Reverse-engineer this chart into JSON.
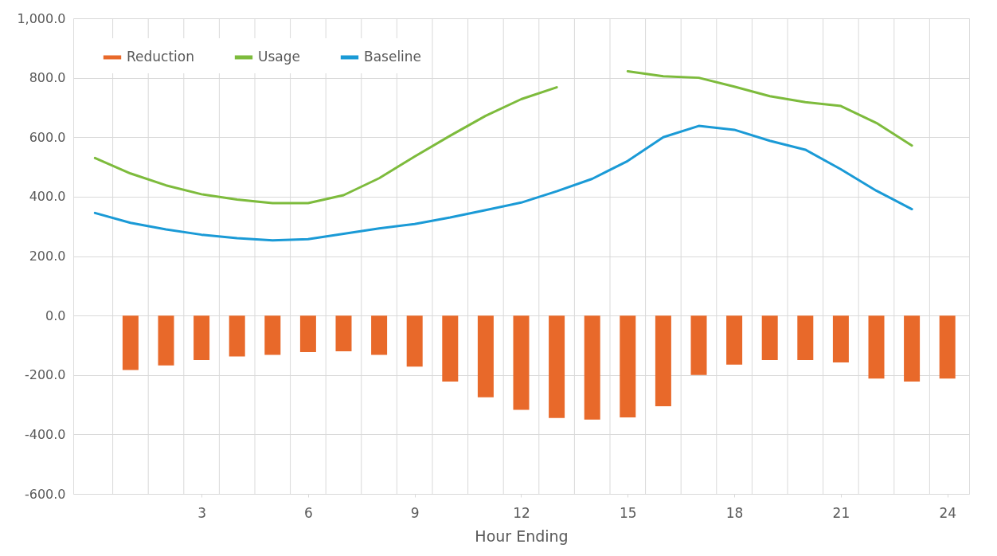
{
  "chart_data": {
    "type": "bar",
    "xlabel": "Hour Ending",
    "xlim": [
      -0.5,
      24.5
    ],
    "xticks": [
      {
        "value": 0.5,
        "label": null
      },
      {
        "value": 1.5,
        "label": null
      },
      {
        "value": 2.5,
        "label": null
      },
      3,
      {
        "value": 3.5,
        "label": null
      },
      {
        "value": 4.5,
        "label": null
      },
      {
        "value": 5.5,
        "label": null
      },
      6,
      {
        "value": 6.5,
        "label": null
      },
      {
        "value": 7.5,
        "label": null
      },
      {
        "value": 8.5,
        "label": null
      },
      9,
      {
        "value": 9.5,
        "label": null
      },
      {
        "value": 10.5,
        "label": null
      },
      {
        "value": 11.5,
        "label": null
      },
      12,
      {
        "value": 12.5,
        "label": null
      },
      {
        "value": 13.5,
        "label": null
      },
      {
        "value": 14.5,
        "label": null
      },
      15,
      {
        "value": 15.5,
        "label": null
      },
      {
        "value": 16.5,
        "label": null
      },
      {
        "value": 17.5,
        "label": null
      },
      18,
      {
        "value": 18.5,
        "label": null
      },
      {
        "value": 19.5,
        "label": null
      },
      {
        "value": 20.5,
        "label": null
      },
      21,
      {
        "value": 21.5,
        "label": null
      },
      {
        "value": 22.5,
        "label": null
      },
      {
        "value": 23.5,
        "label": null
      },
      24
    ],
    "ylim": [
      -600,
      1000
    ],
    "yticks": [
      {
        "value": -600,
        "label": "-600.0"
      },
      {
        "value": -400,
        "label": "-400.0"
      },
      {
        "value": -200,
        "label": "-200.0"
      },
      {
        "value": 0,
        "label": "0.0"
      },
      {
        "value": 200,
        "label": "200.0"
      },
      {
        "value": 400,
        "label": "400.0"
      },
      {
        "value": 600,
        "label": "600.0"
      },
      {
        "value": 800,
        "label": "800.0"
      },
      {
        "value": 1000,
        "label": "1,000.0"
      }
    ],
    "grid": true,
    "legend": "top left",
    "series": [
      {
        "name": "Reduction",
        "color": "#e8692a",
        "x": [
          1,
          2,
          3,
          4,
          5,
          6,
          7,
          8,
          9,
          10,
          11,
          12,
          13,
          14,
          15,
          16,
          17,
          18,
          19,
          20,
          21,
          22,
          23,
          24
        ],
        "values": [
          -183,
          -168,
          -150,
          -138,
          -132,
          -123,
          -120,
          -132,
          -172,
          -222,
          -275,
          -317,
          -345,
          -350,
          -343,
          -305,
          -200,
          -165,
          -150,
          -150,
          -158,
          -212,
          -222,
          -212
        ]
      },
      {
        "name": "Usage",
        "type": "line",
        "color": "#7dbb3c",
        "x": [
          0,
          1,
          2,
          3,
          4,
          5,
          6,
          7,
          8,
          9,
          10,
          11,
          12,
          13,
          14,
          15,
          16,
          17,
          18,
          19,
          20,
          21,
          22,
          23
        ],
        "values": [
          530,
          478,
          438,
          408,
          390,
          378,
          378,
          405,
          462,
          535,
          605,
          672,
          728,
          768,
          null,
          822,
          805,
          800,
          770,
          738,
          718,
          705,
          648,
          572
        ]
      },
      {
        "name": "Baseline",
        "type": "line",
        "color": "#1a9ad6",
        "x": [
          0,
          1,
          2,
          3,
          4,
          5,
          6,
          7,
          8,
          9,
          10,
          11,
          12,
          13,
          14,
          15,
          16,
          17,
          18,
          19,
          20,
          21,
          22,
          23
        ],
        "values": [
          345,
          312,
          290,
          272,
          260,
          253,
          257,
          275,
          293,
          308,
          330,
          355,
          380,
          418,
          460,
          520,
          600,
          638,
          625,
          588,
          558,
          492,
          420,
          358
        ]
      }
    ]
  }
}
